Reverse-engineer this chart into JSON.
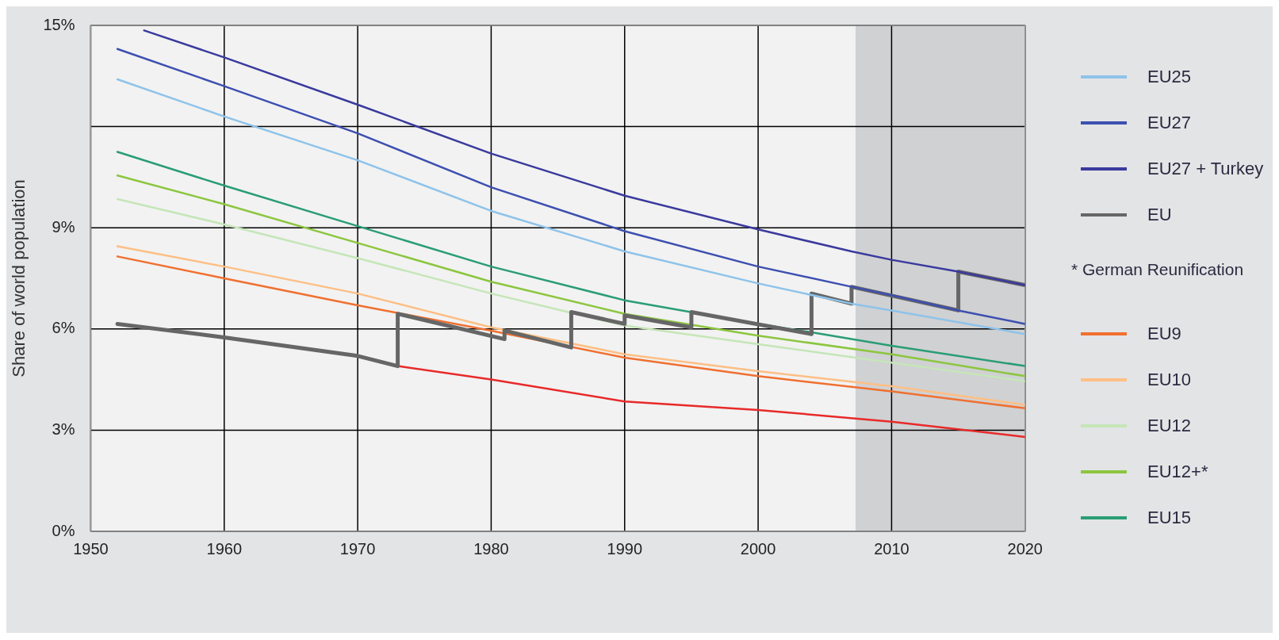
{
  "chart_data": {
    "type": "line",
    "ylabel": "Share of world population",
    "xlim": [
      1950,
      2020
    ],
    "xticks": [
      1950,
      1960,
      1970,
      1980,
      1990,
      2000,
      2010,
      2020
    ],
    "ylim": [
      0,
      15
    ],
    "yticks": [
      {
        "value": 0,
        "label": "0%"
      },
      {
        "value": 3,
        "label": "3%"
      },
      {
        "value": 6,
        "label": "6%"
      },
      {
        "value": 9,
        "label": "9%"
      },
      {
        "value": 12,
        "label": null
      },
      {
        "value": 15,
        "label": "15%"
      }
    ],
    "grid": true,
    "legend": "right",
    "marker": "none",
    "annotations": [
      "* German Reunification"
    ],
    "bands": [
      {
        "axis": "x",
        "from": 2007.3,
        "to": 2020,
        "color": "#d0d1d3"
      }
    ],
    "series": [
      {
        "name": "EU25",
        "color": "#8ec3ea",
        "x": [
          1952,
          1960,
          1970,
          1980,
          1990,
          2000,
          2007,
          2010,
          2020
        ],
        "values": [
          13.4,
          12.3,
          11.0,
          9.5,
          8.3,
          7.35,
          6.75,
          6.55,
          5.85
        ]
      },
      {
        "name": "EU27",
        "color": "#3d4fb0",
        "x": [
          1952,
          1960,
          1970,
          1980,
          1990,
          2000,
          2007,
          2010,
          2015,
          2020
        ],
        "values": [
          14.3,
          13.2,
          11.8,
          10.2,
          8.9,
          7.85,
          7.25,
          7.0,
          6.55,
          6.15
        ]
      },
      {
        "name": "EU27 + Turkey",
        "color": "#3a3a9e",
        "x": [
          1954,
          1960,
          1970,
          1980,
          1990,
          2000,
          2007,
          2010,
          2015,
          2020
        ],
        "values": [
          14.85,
          14.05,
          12.65,
          11.2,
          9.95,
          8.95,
          8.3,
          8.05,
          7.7,
          7.3
        ]
      },
      {
        "name": "EU",
        "color": "#666666",
        "x": [
          1952,
          1960,
          1970,
          1973,
          1973,
          1981,
          1981,
          1986,
          1986,
          1990,
          1990,
          1995,
          1995,
          2004,
          2004,
          2007,
          2007,
          2015,
          2015,
          2020
        ],
        "values": [
          6.15,
          5.75,
          5.2,
          4.9,
          6.45,
          5.7,
          5.95,
          5.45,
          6.5,
          6.15,
          6.4,
          6.05,
          6.5,
          5.85,
          7.05,
          6.75,
          7.25,
          6.55,
          7.7,
          7.3
        ]
      },
      {
        "name": "EU9",
        "color": "#f07030",
        "x": [
          1952,
          1960,
          1970,
          1980,
          1990,
          2000,
          2010,
          2020
        ],
        "values": [
          8.15,
          7.5,
          6.7,
          5.95,
          5.15,
          4.6,
          4.15,
          3.65
        ]
      },
      {
        "name": "EU10",
        "color": "#fdbf85",
        "x": [
          1952,
          1960,
          1970,
          1980,
          1990,
          2000,
          2010,
          2020
        ],
        "values": [
          8.45,
          7.85,
          7.05,
          6.05,
          5.25,
          4.75,
          4.3,
          3.75
        ]
      },
      {
        "name": "EU12",
        "color": "#c5e6b8",
        "x": [
          1952,
          1960,
          1970,
          1980,
          1990,
          2000,
          2010,
          2020
        ],
        "values": [
          9.85,
          9.1,
          8.1,
          7.05,
          6.1,
          5.55,
          5.0,
          4.45
        ]
      },
      {
        "name": "EU12+*",
        "color": "#8cc63f",
        "x": [
          1952,
          1960,
          1970,
          1980,
          1990,
          2000,
          2010,
          2020
        ],
        "values": [
          10.55,
          9.7,
          8.55,
          7.4,
          6.45,
          5.8,
          5.25,
          4.6
        ]
      },
      {
        "name": "EU15",
        "color": "#2a9d74",
        "x": [
          1952,
          1960,
          1970,
          1980,
          1990,
          2000,
          2004,
          2010,
          2020
        ],
        "values": [
          11.25,
          10.25,
          9.05,
          7.85,
          6.85,
          6.15,
          5.9,
          5.5,
          4.9
        ]
      },
      {
        "color": "#e82a2a",
        "x": [
          1973,
          1980,
          1990,
          2000,
          2010,
          2020
        ],
        "values": [
          4.9,
          4.5,
          3.85,
          3.6,
          3.25,
          2.8
        ]
      }
    ]
  }
}
